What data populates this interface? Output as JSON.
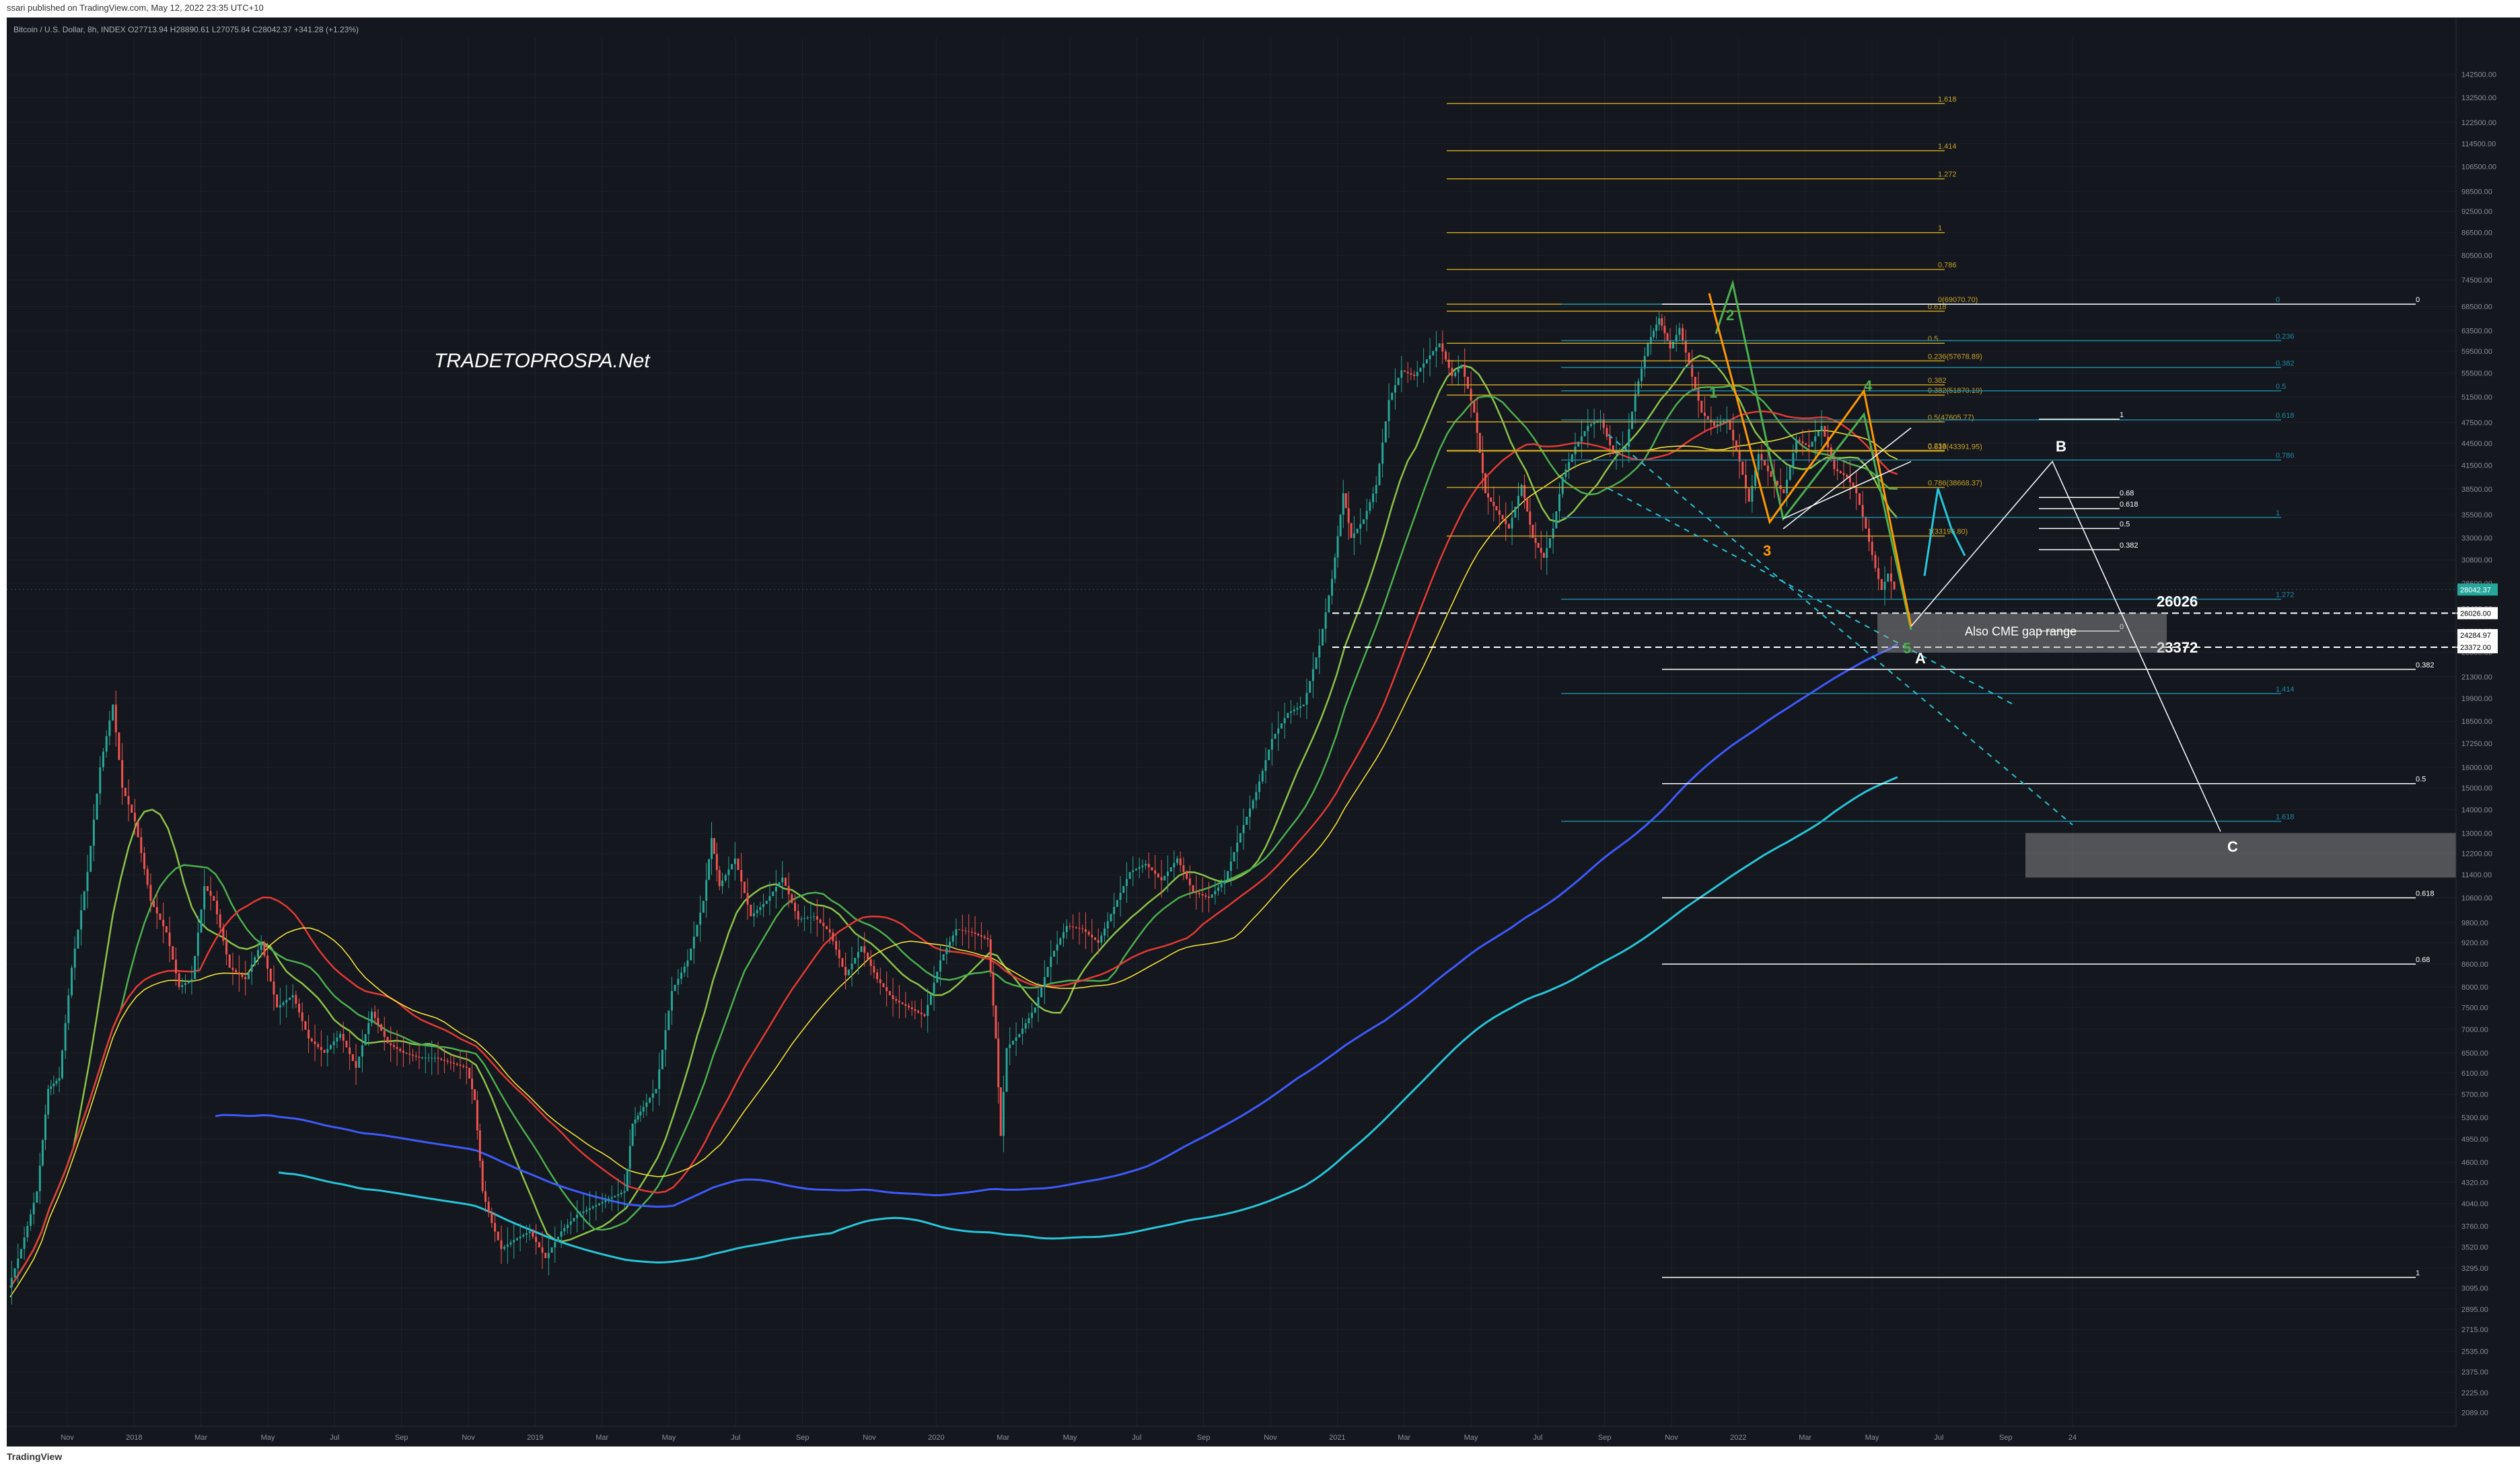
{
  "header": {
    "published_text": "ssari published on TradingView.com, May 12, 2022 23:35 UTC+10",
    "symbol_line": "Bitcoin / U.S. Dollar, 8h, INDEX  O27713.94  H28890.61  L27075.84  C28042.37  +341.28 (+1.23%)"
  },
  "footer": {
    "brand": "TradingView"
  },
  "watermark": "TRADETOPROSPA.Net",
  "colors": {
    "bg": "#14171d",
    "grid": "#1e222a",
    "up": "#26a69a",
    "down": "#ef5350",
    "ma_blue": "#3d5afe",
    "ma_cyan": "#26c6da",
    "ma_green1": "#4caf50",
    "ma_green2": "#8bc34a",
    "ma_red": "#e53935",
    "ma_yellow": "#ffeb3b",
    "fib_gold": "#c9a227",
    "fib_teal": "#1e88a8",
    "orange": "#ff9800",
    "price_label_bg": "#26a69a"
  },
  "chart_data": {
    "type": "candlestick",
    "timeframe": "8h",
    "scale": "log",
    "ylim": [
      2000,
      160000
    ],
    "x_tick_labels": [
      "Nov",
      "2018",
      "Mar",
      "May",
      "Jul",
      "Sep",
      "Nov",
      "2019",
      "Mar",
      "May",
      "Jul",
      "Sep",
      "Nov",
      "2020",
      "Mar",
      "May",
      "Jul",
      "Sep",
      "Nov",
      "2021",
      "Mar",
      "May",
      "Jul",
      "Sep",
      "Nov",
      "2022",
      "Mar",
      "May",
      "Jul",
      "Sep",
      "24"
    ],
    "y_tick_labels": [
      "142500.00",
      "132500.00",
      "122500.00",
      "114500.00",
      "106500.00",
      "98500.00",
      "92500.00",
      "86500.00",
      "80500.00",
      "74500.00",
      "68500.00",
      "63500.00",
      "59500.00",
      "55500.00",
      "51500.00",
      "47500.00",
      "44500.00",
      "41500.00",
      "38500.00",
      "35500.00",
      "33000.00",
      "30800.00",
      "28600.00",
      "26400.00",
      "24600.00",
      "23000.00",
      "21300.00",
      "19900.00",
      "18500.00",
      "17250.00",
      "16000.00",
      "15000.00",
      "14000.00",
      "13000.00",
      "12200.00",
      "11400.00",
      "10600.00",
      "9800.00",
      "9200.00",
      "8600.00",
      "8000.00",
      "7500.00",
      "7000.00",
      "6500.00",
      "6100.00",
      "5700.00",
      "5300.00",
      "4950.00",
      "4600.00",
      "4320.00",
      "4040.00",
      "3760.00",
      "3520.00",
      "3295.00",
      "3095.00",
      "2895.00",
      "2715.00",
      "2535.00",
      "2375.00",
      "2225.00",
      "2089.00"
    ],
    "series_close_path": [
      [
        0,
        3100
      ],
      [
        8,
        3500
      ],
      [
        18,
        4200
      ],
      [
        25,
        5800
      ],
      [
        32,
        6000
      ],
      [
        40,
        8500
      ],
      [
        50,
        11500
      ],
      [
        58,
        16000
      ],
      [
        66,
        19500
      ],
      [
        72,
        15000
      ],
      [
        80,
        13500
      ],
      [
        90,
        10500
      ],
      [
        100,
        9500
      ],
      [
        108,
        8000
      ],
      [
        116,
        8200
      ],
      [
        124,
        11000
      ],
      [
        130,
        10500
      ],
      [
        140,
        8500
      ],
      [
        150,
        8200
      ],
      [
        160,
        9200
      ],
      [
        170,
        7500
      ],
      [
        180,
        7800
      ],
      [
        190,
        6800
      ],
      [
        200,
        6500
      ],
      [
        210,
        6900
      ],
      [
        220,
        6200
      ],
      [
        230,
        7400
      ],
      [
        240,
        6700
      ],
      [
        250,
        6500
      ],
      [
        260,
        6400
      ],
      [
        270,
        6400
      ],
      [
        280,
        6300
      ],
      [
        290,
        6200
      ],
      [
        295,
        5600
      ],
      [
        300,
        4200
      ],
      [
        306,
        3800
      ],
      [
        312,
        3500
      ],
      [
        320,
        3600
      ],
      [
        330,
        3700
      ],
      [
        340,
        3400
      ],
      [
        350,
        3700
      ],
      [
        360,
        3900
      ],
      [
        370,
        4000
      ],
      [
        380,
        4100
      ],
      [
        390,
        4200
      ],
      [
        395,
        5200
      ],
      [
        400,
        5400
      ],
      [
        410,
        5800
      ],
      [
        420,
        7900
      ],
      [
        430,
        8700
      ],
      [
        440,
        10500
      ],
      [
        445,
        12800
      ],
      [
        450,
        11000
      ],
      [
        460,
        12000
      ],
      [
        470,
        10000
      ],
      [
        480,
        10500
      ],
      [
        490,
        11300
      ],
      [
        500,
        9900
      ],
      [
        510,
        10000
      ],
      [
        520,
        9500
      ],
      [
        530,
        8300
      ],
      [
        540,
        9100
      ],
      [
        550,
        8200
      ],
      [
        560,
        7700
      ],
      [
        570,
        7500
      ],
      [
        580,
        7300
      ],
      [
        590,
        8700
      ],
      [
        600,
        9600
      ],
      [
        610,
        9500
      ],
      [
        620,
        9300
      ],
      [
        625,
        6800
      ],
      [
        628,
        5000
      ],
      [
        632,
        6600
      ],
      [
        640,
        6900
      ],
      [
        650,
        7500
      ],
      [
        660,
        8800
      ],
      [
        670,
        9700
      ],
      [
        680,
        9600
      ],
      [
        690,
        9200
      ],
      [
        700,
        10300
      ],
      [
        710,
        11500
      ],
      [
        720,
        11800
      ],
      [
        730,
        11200
      ],
      [
        740,
        12000
      ],
      [
        750,
        10800
      ],
      [
        760,
        10600
      ],
      [
        770,
        11200
      ],
      [
        780,
        13000
      ],
      [
        790,
        14800
      ],
      [
        800,
        17500
      ],
      [
        810,
        19000
      ],
      [
        820,
        19500
      ],
      [
        830,
        23500
      ],
      [
        838,
        29000
      ],
      [
        845,
        38000
      ],
      [
        850,
        33000
      ],
      [
        858,
        35000
      ],
      [
        866,
        39000
      ],
      [
        874,
        51000
      ],
      [
        882,
        56000
      ],
      [
        890,
        55000
      ],
      [
        898,
        58000
      ],
      [
        906,
        61000
      ],
      [
        914,
        55000
      ],
      [
        920,
        57000
      ],
      [
        928,
        49000
      ],
      [
        935,
        38000
      ],
      [
        942,
        36000
      ],
      [
        950,
        34000
      ],
      [
        958,
        39000
      ],
      [
        965,
        33000
      ],
      [
        972,
        31000
      ],
      [
        978,
        34000
      ],
      [
        984,
        40000
      ],
      [
        992,
        44000
      ],
      [
        1000,
        47000
      ],
      [
        1008,
        48000
      ],
      [
        1016,
        43000
      ],
      [
        1024,
        44000
      ],
      [
        1030,
        52000
      ],
      [
        1038,
        61000
      ],
      [
        1045,
        66000
      ],
      [
        1052,
        60000
      ],
      [
        1058,
        64000
      ],
      [
        1064,
        57000
      ],
      [
        1072,
        49000
      ],
      [
        1080,
        47000
      ],
      [
        1088,
        48000
      ],
      [
        1096,
        42000
      ],
      [
        1102,
        37000
      ],
      [
        1108,
        43000
      ],
      [
        1116,
        40000
      ],
      [
        1124,
        38000
      ],
      [
        1132,
        45000
      ],
      [
        1140,
        44000
      ],
      [
        1148,
        47000
      ],
      [
        1156,
        41000
      ],
      [
        1164,
        40000
      ],
      [
        1170,
        38000
      ],
      [
        1176,
        34000
      ],
      [
        1182,
        30000
      ],
      [
        1186,
        28000
      ],
      [
        1190,
        29500
      ],
      [
        1194,
        28042
      ]
    ],
    "last_price": "28042.37",
    "price_tags": [
      "28042.37",
      "26026.00",
      "24284.97",
      "23372.00"
    ],
    "fib_gold_extension": [
      {
        "label": "1.618",
        "price": 130000
      },
      {
        "label": "1.414",
        "price": 112000
      },
      {
        "label": "1.272",
        "price": 102500
      },
      {
        "label": "1",
        "price": 86500
      },
      {
        "label": "0.786",
        "price": 77000
      },
      {
        "label": "0(69070.70)",
        "price": 69000
      },
      {
        "label": "0.618",
        "price": 67500
      },
      {
        "label": "0.5",
        "price": 61000
      },
      {
        "label": "0.236(57678.89)",
        "price": 57700
      },
      {
        "label": "0.382",
        "price": 53500
      },
      {
        "label": "0.382(51870.19)",
        "price": 51800
      },
      {
        "label": "0.5(47605.77)",
        "price": 47600
      },
      {
        "label": "0.236",
        "price": 43500
      },
      {
        "label": "0.618(43391.95)",
        "price": 43400
      },
      {
        "label": "0.786(38668.37)",
        "price": 38700
      },
      {
        "label": "1(33196.80)",
        "price": 33200
      }
    ],
    "fib_teal_retracement": [
      {
        "label": "0",
        "price": 69000
      },
      {
        "label": "0.236",
        "price": 61500
      },
      {
        "label": "0.382",
        "price": 56500
      },
      {
        "label": "0.5",
        "price": 52500
      },
      {
        "label": "0.618",
        "price": 47900
      },
      {
        "label": "0.786",
        "price": 42200
      },
      {
        "label": "1",
        "price": 35200
      },
      {
        "label": "1.272",
        "price": 27200
      },
      {
        "label": "1.414",
        "price": 20200
      },
      {
        "label": "1.618",
        "price": 13500
      }
    ],
    "fib_white_target": [
      {
        "label": "0",
        "price": 69000
      },
      {
        "label": "0.382",
        "price": 21800
      },
      {
        "label": "0.5",
        "price": 15200
      },
      {
        "label": "0.618",
        "price": 10600
      },
      {
        "label": "0.68",
        "price": 8600
      },
      {
        "label": "1",
        "price": 3200
      }
    ],
    "fib_white_small": [
      {
        "label": "1",
        "price": 48000
      },
      {
        "label": "0.68",
        "price": 37500
      },
      {
        "label": "0.618",
        "price": 36200
      },
      {
        "label": "0.5",
        "price": 34000
      },
      {
        "label": "0.382",
        "price": 31800
      },
      {
        "label": "0",
        "price": 24600
      }
    ],
    "wave_labels": [
      {
        "text": "1",
        "color": "#4caf50"
      },
      {
        "text": "2",
        "color": "#4caf50"
      },
      {
        "text": "3",
        "color": "#ff9800"
      },
      {
        "text": "4",
        "color": "#4caf50"
      },
      {
        "text": "5",
        "color": "#4caf50"
      },
      {
        "text": "A",
        "color": "#ffffff"
      },
      {
        "text": "B",
        "color": "#ffffff"
      },
      {
        "text": "C",
        "color": "#ffffff"
      }
    ],
    "annotations": {
      "gap_note": "Also CME gap range",
      "upper_level": "26026",
      "lower_level": "23372"
    }
  }
}
